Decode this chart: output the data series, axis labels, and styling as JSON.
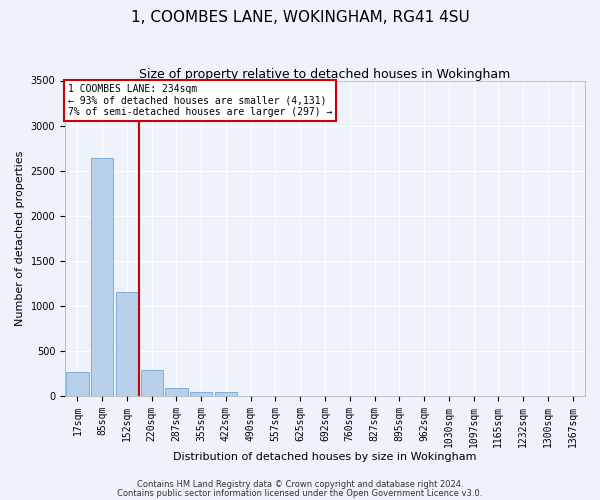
{
  "title": "1, COOMBES LANE, WOKINGHAM, RG41 4SU",
  "subtitle": "Size of property relative to detached houses in Wokingham",
  "xlabel": "Distribution of detached houses by size in Wokingham",
  "ylabel": "Number of detached properties",
  "bin_labels": [
    "17sqm",
    "85sqm",
    "152sqm",
    "220sqm",
    "287sqm",
    "355sqm",
    "422sqm",
    "490sqm",
    "557sqm",
    "625sqm",
    "692sqm",
    "760sqm",
    "827sqm",
    "895sqm",
    "962sqm",
    "1030sqm",
    "1097sqm",
    "1165sqm",
    "1232sqm",
    "1300sqm",
    "1367sqm"
  ],
  "bar_heights": [
    270,
    2640,
    1150,
    290,
    95,
    45,
    40,
    0,
    0,
    0,
    0,
    0,
    0,
    0,
    0,
    0,
    0,
    0,
    0,
    0,
    0
  ],
  "bar_color": "#b8d0ea",
  "bar_edge_color": "#5b9bd5",
  "property_line_color": "#cc0000",
  "property_line_bin": 3,
  "ylim": [
    0,
    3500
  ],
  "yticks": [
    0,
    500,
    1000,
    1500,
    2000,
    2500,
    3000,
    3500
  ],
  "annotation_line1": "1 COOMBES LANE: 234sqm",
  "annotation_line2": "← 93% of detached houses are smaller (4,131)",
  "annotation_line3": "7% of semi-detached houses are larger (297) →",
  "annotation_box_color": "#cc0000",
  "footnote1": "Contains HM Land Registry data © Crown copyright and database right 2024.",
  "footnote2": "Contains public sector information licensed under the Open Government Licence v3.0.",
  "background_color": "#eef2fa",
  "grid_color": "#ffffff",
  "title_fontsize": 11,
  "subtitle_fontsize": 9,
  "xlabel_fontsize": 8,
  "ylabel_fontsize": 8,
  "tick_fontsize": 7,
  "annotation_fontsize": 7,
  "footnote_fontsize": 6
}
